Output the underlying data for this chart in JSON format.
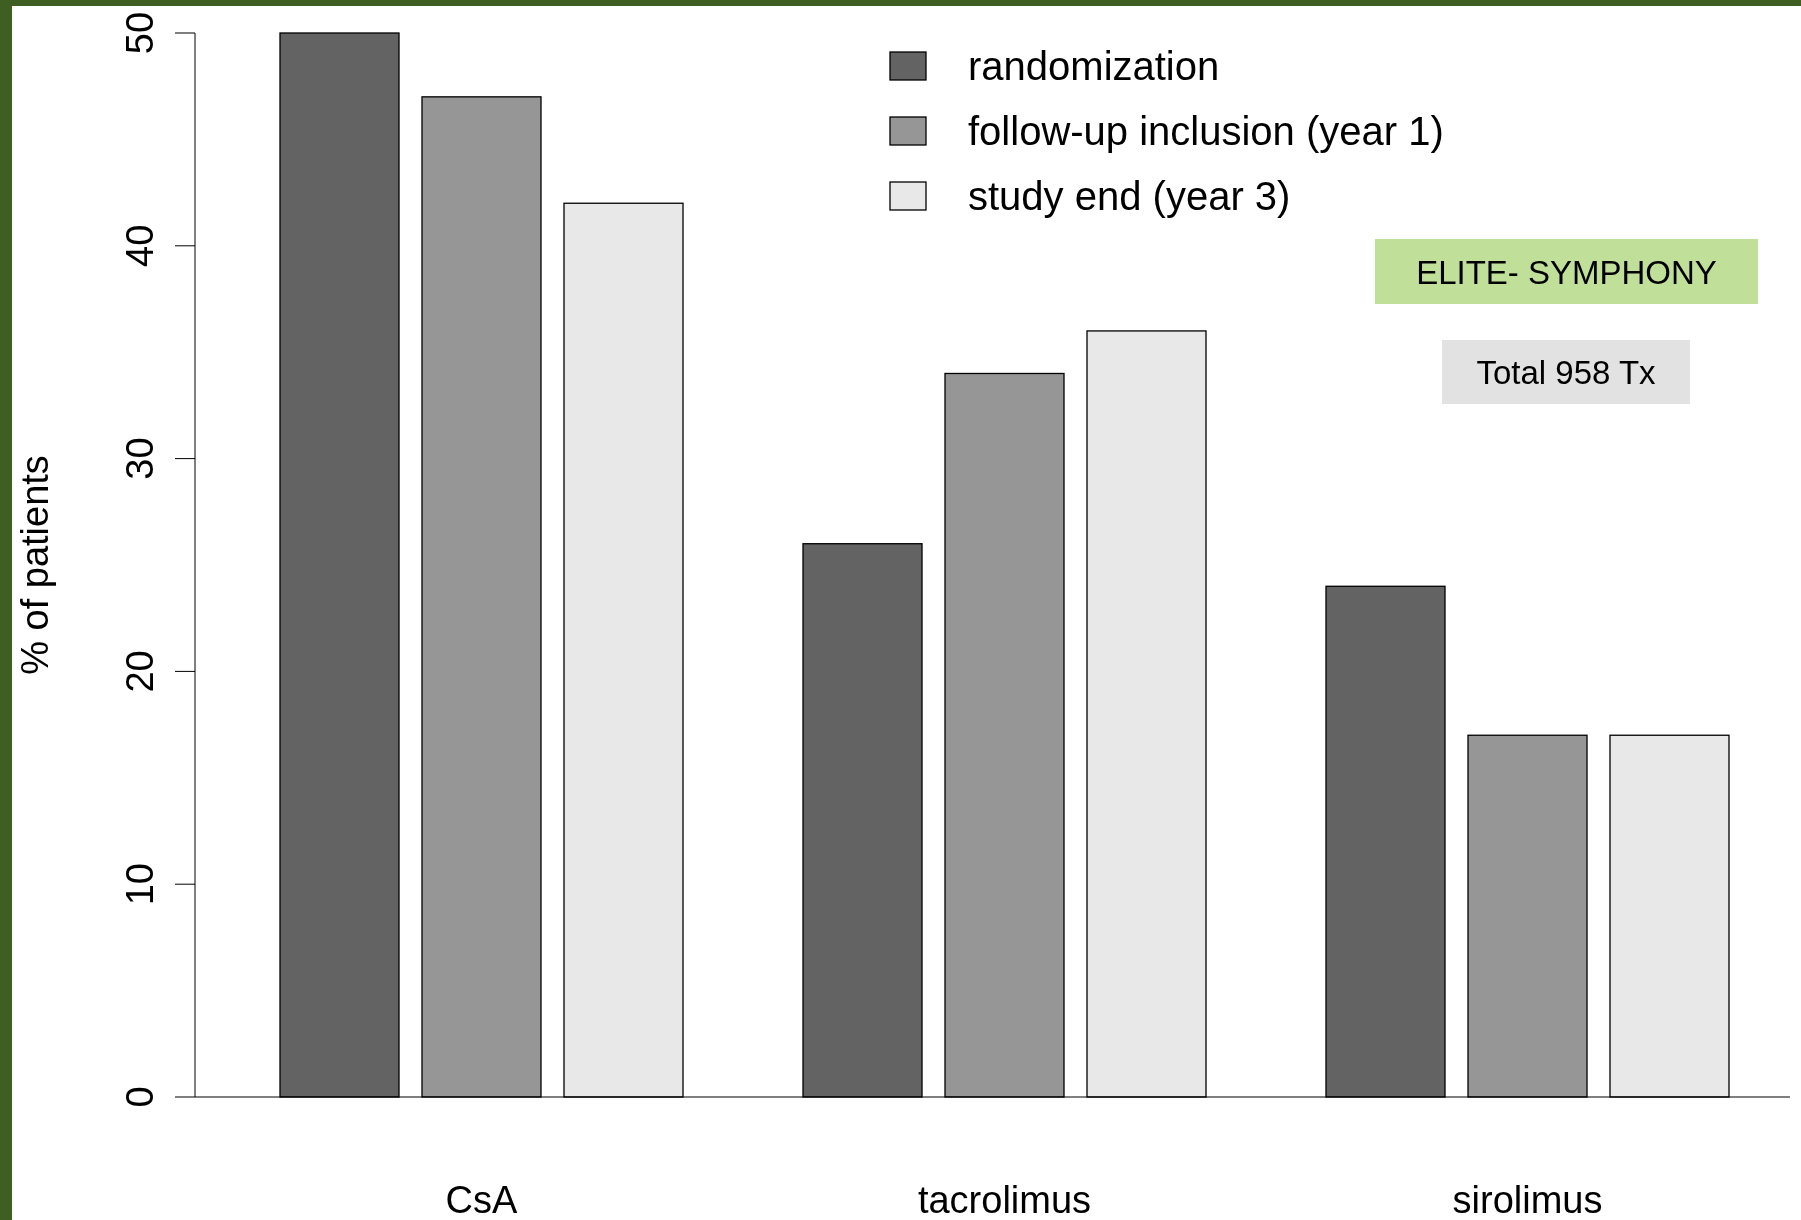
{
  "chart_data": {
    "type": "bar",
    "ylabel": "% of patients",
    "categories": [
      "CsA",
      "tacrolimus",
      "sirolimus"
    ],
    "series": [
      {
        "name": "randomization",
        "color": "#636363",
        "values": [
          50,
          26,
          24
        ]
      },
      {
        "name": "follow-up inclusion (year 1)",
        "color": "#969696",
        "values": [
          47,
          34,
          17
        ]
      },
      {
        "name": "study end (year 3)",
        "color": "#e8e8e8",
        "values": [
          42,
          36,
          17
        ]
      }
    ],
    "ylim": [
      0,
      50
    ],
    "yticks": [
      0,
      10,
      20,
      30,
      40,
      50
    ],
    "legend": "top right",
    "grid": false,
    "annotations": [
      "ELITE- SYMPHONY",
      "Total 958 Tx"
    ]
  }
}
